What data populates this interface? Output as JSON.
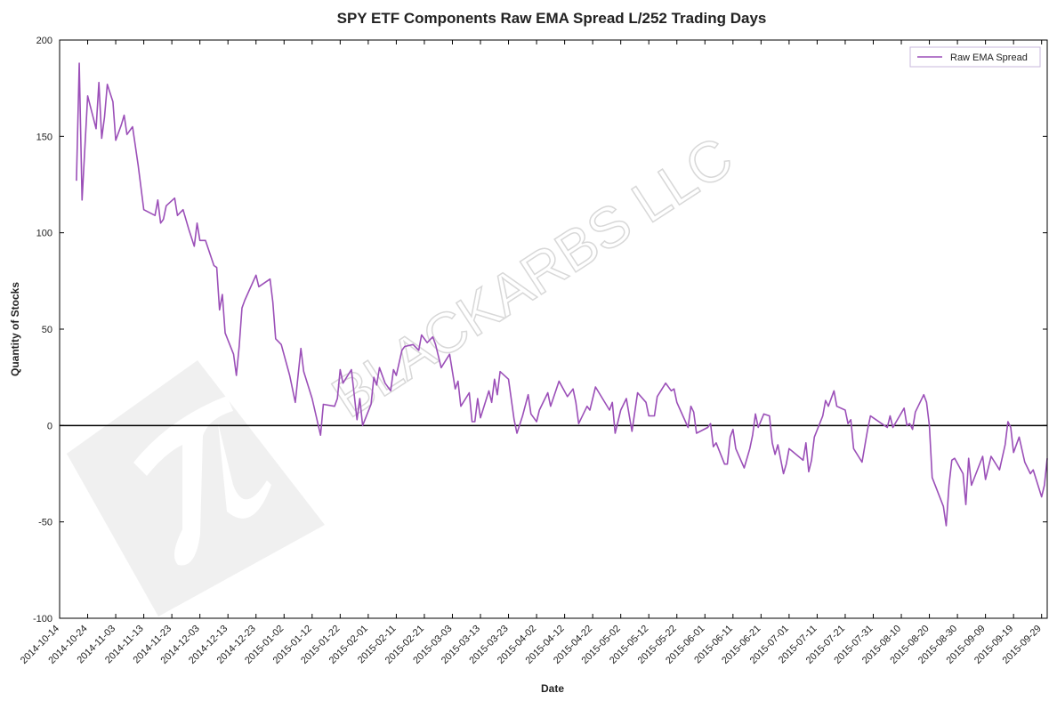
{
  "chart_data": {
    "type": "line",
    "title": "SPY ETF Components Raw EMA Spread L/252 Trading Days",
    "x_label": "Date",
    "y_label": "Quantity of Stocks",
    "watermark": "BLACKARBS LLC",
    "legend": "upper right",
    "grid": false,
    "reference_line": 0,
    "xlim": [
      "2014-10-14",
      "2015-10-01"
    ],
    "xticks": [
      "2014-10-14",
      "2014-10-24",
      "2014-11-03",
      "2014-11-13",
      "2014-11-23",
      "2014-12-03",
      "2014-12-13",
      "2014-12-23",
      "2015-01-02",
      "2015-01-12",
      "2015-01-22",
      "2015-02-01",
      "2015-02-11",
      "2015-02-21",
      "2015-03-03",
      "2015-03-13",
      "2015-03-23",
      "2015-04-02",
      "2015-04-12",
      "2015-04-22",
      "2015-05-02",
      "2015-05-12",
      "2015-05-22",
      "2015-06-01",
      "2015-06-11",
      "2015-06-21",
      "2015-07-01",
      "2015-07-11",
      "2015-07-21",
      "2015-07-31",
      "2015-08-10",
      "2015-08-20",
      "2015-08-30",
      "2015-09-09",
      "2015-09-19",
      "2015-09-29"
    ],
    "ylim": [
      -100,
      200
    ],
    "yticks": [
      -100,
      -50,
      0,
      50,
      100,
      150,
      200
    ],
    "x": [
      "2014-10-20",
      "2014-10-21",
      "2014-10-22",
      "2014-10-24",
      "2014-10-27",
      "2014-10-28",
      "2014-10-29",
      "2014-10-30",
      "2014-10-31",
      "2014-11-02",
      "2014-11-03",
      "2014-11-05",
      "2014-11-06",
      "2014-11-07",
      "2014-11-09",
      "2014-11-11",
      "2014-11-13",
      "2014-11-17",
      "2014-11-18",
      "2014-11-19",
      "2014-11-20",
      "2014-11-21",
      "2014-11-24",
      "2014-11-25",
      "2014-11-27",
      "2014-11-29",
      "2014-12-01",
      "2014-12-02",
      "2014-12-03",
      "2014-12-05",
      "2014-12-08",
      "2014-12-09",
      "2014-12-10",
      "2014-12-11",
      "2014-12-12",
      "2014-12-15",
      "2014-12-16",
      "2014-12-17",
      "2014-12-18",
      "2014-12-19",
      "2014-12-23",
      "2014-12-24",
      "2014-12-28",
      "2014-12-29",
      "2014-12-30",
      "2015-01-01",
      "2015-01-04",
      "2015-01-06",
      "2015-01-08",
      "2015-01-09",
      "2015-01-12",
      "2015-01-15",
      "2015-01-16",
      "2015-01-20",
      "2015-01-21",
      "2015-01-22",
      "2015-01-23",
      "2015-01-26",
      "2015-01-28",
      "2015-01-29",
      "2015-01-30",
      "2015-02-02",
      "2015-02-03",
      "2015-02-04",
      "2015-02-05",
      "2015-02-07",
      "2015-02-09",
      "2015-02-10",
      "2015-02-11",
      "2015-02-13",
      "2015-02-14",
      "2015-02-17",
      "2015-02-19",
      "2015-02-20",
      "2015-02-22",
      "2015-02-24",
      "2015-02-25",
      "2015-02-27",
      "2015-03-02",
      "2015-03-04",
      "2015-03-05",
      "2015-03-06",
      "2015-03-09",
      "2015-03-10",
      "2015-03-11",
      "2015-03-12",
      "2015-03-13",
      "2015-03-16",
      "2015-03-17",
      "2015-03-18",
      "2015-03-19",
      "2015-03-20",
      "2015-03-23",
      "2015-03-25",
      "2015-03-26",
      "2015-03-28",
      "2015-03-30",
      "2015-03-31",
      "2015-04-02",
      "2015-04-03",
      "2015-04-06",
      "2015-04-07",
      "2015-04-10",
      "2015-04-13",
      "2015-04-15",
      "2015-04-16",
      "2015-04-17",
      "2015-04-20",
      "2015-04-21",
      "2015-04-23",
      "2015-04-28",
      "2015-04-29",
      "2015-04-30",
      "2015-05-02",
      "2015-05-04",
      "2015-05-06",
      "2015-05-08",
      "2015-05-11",
      "2015-05-12",
      "2015-05-14",
      "2015-05-15",
      "2015-05-18",
      "2015-05-20",
      "2015-05-21",
      "2015-05-22",
      "2015-05-26",
      "2015-05-27",
      "2015-05-28",
      "2015-05-29",
      "2015-06-02",
      "2015-06-03",
      "2015-06-04",
      "2015-06-05",
      "2015-06-08",
      "2015-06-09",
      "2015-06-10",
      "2015-06-11",
      "2015-06-12",
      "2015-06-15",
      "2015-06-17",
      "2015-06-18",
      "2015-06-19",
      "2015-06-20",
      "2015-06-22",
      "2015-06-24",
      "2015-06-25",
      "2015-06-26",
      "2015-06-27",
      "2015-06-29",
      "2015-06-30",
      "2015-07-01",
      "2015-07-06",
      "2015-07-07",
      "2015-07-08",
      "2015-07-09",
      "2015-07-10",
      "2015-07-13",
      "2015-07-14",
      "2015-07-15",
      "2015-07-17",
      "2015-07-18",
      "2015-07-21",
      "2015-07-22",
      "2015-07-23",
      "2015-07-24",
      "2015-07-27",
      "2015-07-29",
      "2015-07-30",
      "2015-07-31",
      "2015-08-05",
      "2015-08-06",
      "2015-08-07",
      "2015-08-11",
      "2015-08-12",
      "2015-08-13",
      "2015-08-14",
      "2015-08-15",
      "2015-08-18",
      "2015-08-19",
      "2015-08-20",
      "2015-08-21",
      "2015-08-25",
      "2015-08-26",
      "2015-08-27",
      "2015-08-28",
      "2015-08-29",
      "2015-09-01",
      "2015-09-02",
      "2015-09-03",
      "2015-09-04",
      "2015-09-08",
      "2015-09-09",
      "2015-09-11",
      "2015-09-14",
      "2015-09-16",
      "2015-09-17",
      "2015-09-18",
      "2015-09-19",
      "2015-09-21",
      "2015-09-23",
      "2015-09-25",
      "2015-09-26",
      "2015-09-29",
      "2015-09-30",
      "2015-10-01"
    ],
    "series": [
      {
        "name": "Raw EMA Spread",
        "color": "#9b4fb8",
        "values": [
          127,
          188,
          117,
          171,
          154,
          178,
          149,
          160,
          177,
          168,
          148,
          156,
          161,
          151,
          155,
          135,
          112,
          109,
          117,
          105,
          107,
          114,
          118,
          109,
          112,
          102,
          93,
          105,
          96,
          96,
          83,
          82,
          60,
          68,
          48,
          37,
          26,
          41,
          61,
          65,
          78,
          72,
          76,
          64,
          45,
          42,
          26,
          12,
          40,
          28,
          14,
          -5,
          11,
          10,
          14,
          29,
          22,
          29,
          3,
          14,
          0,
          11,
          25,
          21,
          30,
          22,
          18,
          29,
          26,
          39,
          41,
          42,
          39,
          47,
          43,
          46,
          42,
          30,
          37,
          19,
          23,
          10,
          17,
          2,
          2,
          14,
          4,
          18,
          12,
          24,
          16,
          28,
          24,
          3,
          -4,
          5,
          16,
          6,
          2,
          8,
          17,
          10,
          23,
          15,
          19,
          12,
          1,
          10,
          8,
          20,
          8,
          12,
          -4,
          8,
          14,
          -3,
          17,
          12,
          5,
          5,
          15,
          22,
          18,
          19,
          12,
          -1,
          10,
          7,
          -4,
          -1,
          1,
          -11,
          -9,
          -20,
          -20,
          -6,
          -2,
          -12,
          -22,
          -12,
          -5,
          6,
          -1,
          6,
          5,
          -9,
          -15,
          -10,
          -25,
          -20,
          -12,
          -18,
          -9,
          -24,
          -18,
          -6,
          5,
          13,
          10,
          18,
          10,
          8,
          1,
          3,
          -12,
          -19,
          -2,
          5,
          4,
          -1,
          5,
          -1,
          9,
          0,
          1,
          -2,
          7,
          16,
          12,
          0,
          -27,
          -42,
          -52,
          -31,
          -18,
          -17,
          -25,
          -41,
          -17,
          -31,
          -16,
          -28,
          -16,
          -23,
          -10,
          2,
          -1,
          -14,
          -6,
          -19,
          -25,
          -23,
          -37,
          -31,
          -17
        ]
      }
    ]
  }
}
